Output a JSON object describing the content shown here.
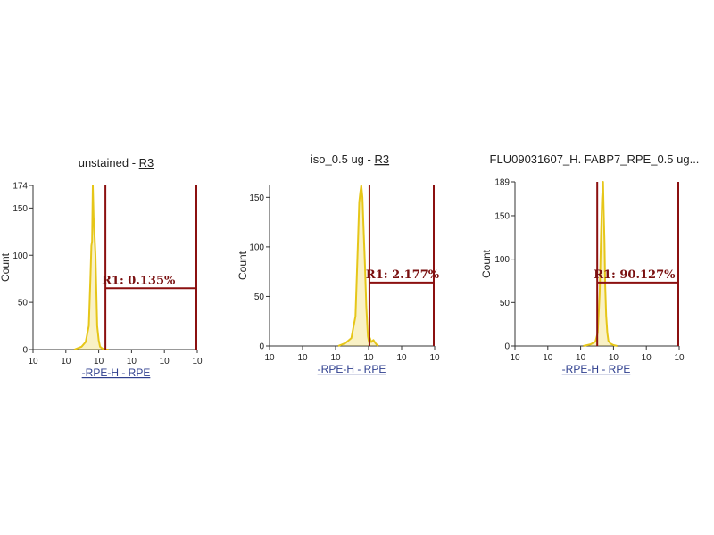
{
  "colors": {
    "histogram": "#e6c619",
    "gate": "#8b1010",
    "axis": "#333333",
    "xlabel": "#2f3f8f"
  },
  "chart_data": [
    {
      "type": "area",
      "title": "unstained - ",
      "title_link": "R3",
      "xlabel": "-RPE-H - RPE",
      "ylabel": "Count",
      "x_scale": "log",
      "xlim": [
        1,
        100000
      ],
      "x_ticks": [
        "10",
        "10",
        "10",
        "10",
        "10"
      ],
      "ylim": [
        0,
        174
      ],
      "y_ticks": [
        "0",
        "50",
        "100",
        "150",
        "174"
      ],
      "y_tick_values": [
        0,
        50,
        100,
        150,
        174
      ],
      "series": [
        {
          "x": [
            18,
            30,
            40,
            50,
            56,
            60,
            63,
            66,
            70,
            75,
            80,
            85,
            90,
            100,
            110,
            130,
            160,
            200
          ],
          "values": [
            0,
            3,
            8,
            25,
            75,
            110,
            115,
            174,
            140,
            120,
            100,
            60,
            25,
            10,
            3,
            1,
            0,
            0
          ]
        }
      ],
      "gate": {
        "name": "R1",
        "label": "R1: 0.135%",
        "start": 160,
        "end": 100000,
        "level": 65
      }
    },
    {
      "type": "area",
      "title": "iso_0.5 ug - ",
      "title_link": "R3",
      "xlabel": "-RPE-H - RPE",
      "ylabel": "Count",
      "x_scale": "log",
      "xlim": [
        1,
        100000
      ],
      "x_ticks": [
        "10",
        "10",
        "10",
        "10",
        "10"
      ],
      "ylim": [
        0,
        162
      ],
      "y_ticks": [
        "0",
        "50",
        "100",
        "150"
      ],
      "y_tick_values": [
        0,
        50,
        100,
        150
      ],
      "series": [
        {
          "x": [
            120,
            200,
            300,
            400,
            470,
            520,
            560,
            600,
            650,
            700,
            780,
            850,
            950,
            1000,
            1060,
            1100,
            1200,
            1400,
            1600,
            1800,
            2000
          ],
          "values": [
            0,
            3,
            8,
            30,
            100,
            145,
            155,
            162,
            150,
            120,
            80,
            40,
            10,
            6,
            3,
            8,
            4,
            6,
            3,
            1,
            0
          ]
        }
      ],
      "gate": {
        "name": "R1",
        "label": "R1: 2.177%",
        "start": 1060,
        "end": 100000,
        "level": 64
      }
    },
    {
      "type": "area",
      "title": "FLU09031607_H. FABP7_RPE_0.5 ug...",
      "title_link": "",
      "xlabel": "-RPE-H - RPE",
      "ylabel": "Count",
      "x_scale": "log",
      "xlim": [
        1,
        100000
      ],
      "x_ticks": [
        "10",
        "10",
        "10",
        "10",
        "10"
      ],
      "ylim": [
        0,
        189
      ],
      "y_ticks": [
        "0",
        "50",
        "100",
        "150",
        "189"
      ],
      "y_tick_values": [
        0,
        50,
        100,
        150,
        189
      ],
      "series": [
        {
          "x": [
            120,
            200,
            280,
            330,
            380,
            420,
            450,
            480,
            500,
            530,
            560,
            600,
            650,
            700,
            800,
            1000,
            1300
          ],
          "values": [
            0,
            2,
            5,
            15,
            60,
            130,
            170,
            189,
            160,
            120,
            70,
            35,
            15,
            6,
            3,
            1,
            0
          ]
        }
      ],
      "gate": {
        "name": "R1",
        "label": "R1: 90.127%",
        "start": 320,
        "end": 100000,
        "level": 73
      }
    }
  ]
}
